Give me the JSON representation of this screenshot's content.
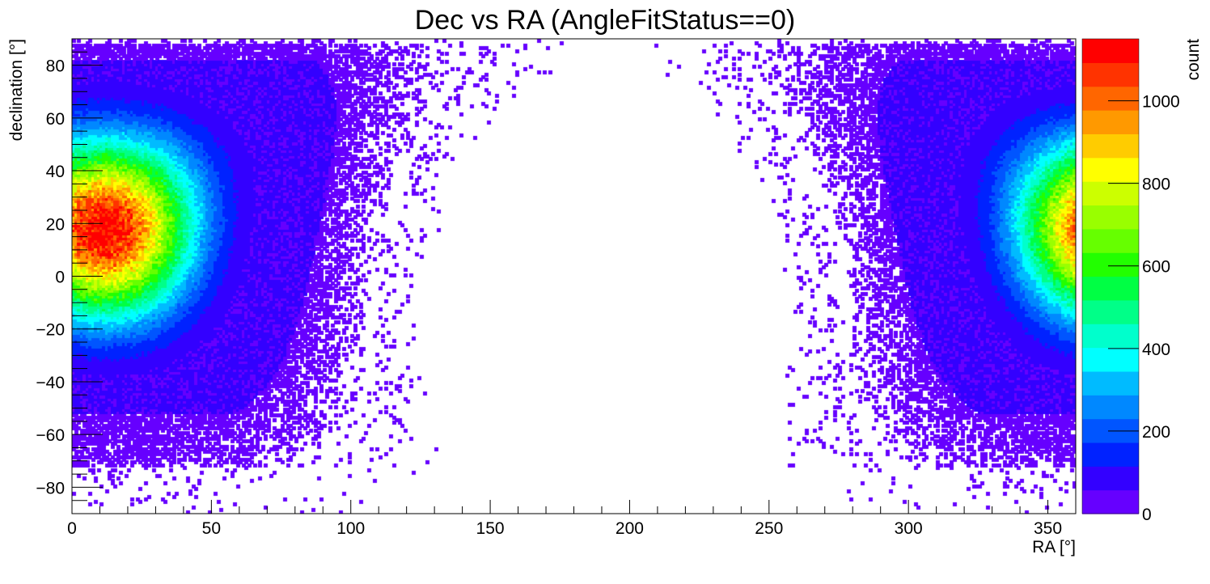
{
  "chart_data": {
    "type": "heatmap",
    "title": "Dec vs RA (AngleFitStatus==0)",
    "xlabel": "RA [°]",
    "ylabel": "declination [°]",
    "zlabel": "count",
    "xlim": [
      0,
      360
    ],
    "ylim": [
      -90,
      90
    ],
    "zlim": [
      0,
      1150
    ],
    "x_ticks": [
      0,
      50,
      100,
      150,
      200,
      250,
      300,
      350
    ],
    "x_tick_labels": [
      "0",
      "50",
      "100",
      "150",
      "200",
      "250",
      "300",
      "350"
    ],
    "y_ticks": [
      -80,
      -60,
      -40,
      -20,
      0,
      20,
      40,
      60,
      80
    ],
    "y_tick_labels": [
      "−80",
      "−60",
      "−40",
      "−20",
      "0",
      "20",
      "40",
      "60",
      "80"
    ],
    "z_ticks": [
      0,
      200,
      400,
      600,
      800,
      1000
    ],
    "z_tick_labels": [
      "0",
      "200",
      "400",
      "600",
      "800",
      "1000"
    ],
    "grid": false,
    "colorbar_position": "right",
    "bins": {
      "nx": 360,
      "ny": 180
    },
    "density_model": {
      "peak_ra": 12,
      "peak_dec": 18,
      "peak_count": 1150,
      "core_width_deg": 30,
      "plateau_count": 60,
      "plateau_outer_radius_deg": 75,
      "sparse_outer_radius_deg": 100,
      "dec_cap_north": 82,
      "dec_cap_south": -52
    },
    "palette": [
      "#6600ff",
      "#3300ff",
      "#0022ff",
      "#0055ff",
      "#0088ff",
      "#00bbff",
      "#00ffff",
      "#00ffcc",
      "#00ff88",
      "#00ff44",
      "#22ff00",
      "#66ff00",
      "#99ff00",
      "#ccff00",
      "#ffff00",
      "#ffcc00",
      "#ff9900",
      "#ff6600",
      "#ff3300",
      "#ff0000"
    ]
  }
}
